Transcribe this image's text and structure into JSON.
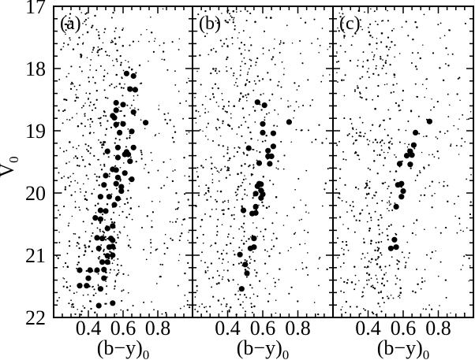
{
  "figure": {
    "background": "#ffffff",
    "ink_color": "#000000"
  },
  "chart_data": {
    "type": "scatter",
    "title": "",
    "xlabel": "(b−y)",
    "xlabel_subscript": "0",
    "ylabel": "V",
    "ylabel_subscript": "0",
    "xlim": [
      0.2,
      1.0
    ],
    "ylim": [
      22,
      17
    ],
    "y_axis_inverted": true,
    "x_major_ticks": [
      0.4,
      0.6,
      0.8
    ],
    "x_tick_labels": [
      "0.4",
      "0.6",
      "0.8"
    ],
    "x_minor_step": 0.05,
    "y_major_ticks": [
      17,
      18,
      19,
      20,
      21,
      22
    ],
    "y_tick_labels": [
      "17",
      "18",
      "19",
      "20",
      "21",
      "22"
    ],
    "y_minor_step": 0.2,
    "grid": false,
    "legend": "none",
    "series_description": {
      "member_stars": "large filled circles: highlighted member stars, coordinates [(b-y)0, V0] read from figure",
      "field_stars": "small dots: background field stars forming a dense vertical band near (b-y)0 ~ 0.3-0.6 with sparser scatter elsewhere; reproduced as seeded random scatter"
    },
    "panels": [
      {
        "label": "(a)",
        "members": [
          [
            0.62,
            18.08
          ],
          [
            0.66,
            18.12
          ],
          [
            0.64,
            18.33
          ],
          [
            0.67,
            18.34
          ],
          [
            0.56,
            18.55
          ],
          [
            0.6,
            18.58
          ],
          [
            0.56,
            18.67
          ],
          [
            0.66,
            18.7
          ],
          [
            0.54,
            18.76
          ],
          [
            0.55,
            18.79
          ],
          [
            0.73,
            18.87
          ],
          [
            0.56,
            18.9
          ],
          [
            0.6,
            18.89
          ],
          [
            0.58,
            19.03
          ],
          [
            0.65,
            19.01
          ],
          [
            0.57,
            19.27
          ],
          [
            0.66,
            19.27
          ],
          [
            0.61,
            19.38
          ],
          [
            0.63,
            19.38
          ],
          [
            0.51,
            19.33
          ],
          [
            0.62,
            19.34
          ],
          [
            0.57,
            19.43
          ],
          [
            0.64,
            19.49
          ],
          [
            0.54,
            19.62
          ],
          [
            0.56,
            19.63
          ],
          [
            0.61,
            19.68
          ],
          [
            0.5,
            19.72
          ],
          [
            0.57,
            19.75
          ],
          [
            0.65,
            19.78
          ],
          [
            0.49,
            19.87
          ],
          [
            0.56,
            19.85
          ],
          [
            0.59,
            19.9
          ],
          [
            0.59,
            19.97
          ],
          [
            0.47,
            20.06
          ],
          [
            0.52,
            20.06
          ],
          [
            0.57,
            20.09
          ],
          [
            0.55,
            20.19
          ],
          [
            0.47,
            20.28
          ],
          [
            0.5,
            20.29
          ],
          [
            0.44,
            20.4
          ],
          [
            0.47,
            20.42
          ],
          [
            0.54,
            20.53
          ],
          [
            0.51,
            20.57
          ],
          [
            0.54,
            20.76
          ],
          [
            0.45,
            20.72
          ],
          [
            0.48,
            20.73
          ],
          [
            0.53,
            20.73
          ],
          [
            0.46,
            20.89
          ],
          [
            0.52,
            20.87
          ],
          [
            0.54,
            20.86
          ],
          [
            0.51,
            21.01
          ],
          [
            0.54,
            21.0
          ],
          [
            0.48,
            21.11
          ],
          [
            0.51,
            21.11
          ],
          [
            0.35,
            21.24
          ],
          [
            0.41,
            21.24
          ],
          [
            0.45,
            21.24
          ],
          [
            0.49,
            21.23
          ],
          [
            0.4,
            21.37
          ],
          [
            0.49,
            21.37
          ],
          [
            0.35,
            21.49
          ],
          [
            0.39,
            21.49
          ],
          [
            0.47,
            21.54
          ],
          [
            0.54,
            21.77
          ],
          [
            0.46,
            21.81
          ]
        ],
        "field": {
          "seed": 101,
          "n_band": 330,
          "n_field": 330,
          "band_center": 0.44,
          "band_sigma": 0.12
        }
      },
      {
        "label": "(b)",
        "members": [
          [
            0.57,
            18.54
          ],
          [
            0.61,
            18.59
          ],
          [
            0.75,
            18.86
          ],
          [
            0.6,
            18.89
          ],
          [
            0.6,
            19.03
          ],
          [
            0.66,
            19.04
          ],
          [
            0.66,
            19.25
          ],
          [
            0.52,
            19.28
          ],
          [
            0.63,
            19.32
          ],
          [
            0.63,
            19.41
          ],
          [
            0.65,
            19.41
          ],
          [
            0.58,
            19.52
          ],
          [
            0.64,
            19.53
          ],
          [
            0.58,
            19.85
          ],
          [
            0.59,
            19.86
          ],
          [
            0.57,
            19.89
          ],
          [
            0.59,
            19.96
          ],
          [
            0.56,
            20.01
          ],
          [
            0.6,
            20.02
          ],
          [
            0.59,
            20.08
          ],
          [
            0.56,
            20.22
          ],
          [
            0.49,
            20.28
          ],
          [
            0.54,
            20.33
          ],
          [
            0.56,
            20.32
          ],
          [
            0.55,
            20.73
          ],
          [
            0.53,
            20.89
          ],
          [
            0.55,
            20.87
          ],
          [
            0.47,
            20.99
          ],
          [
            0.5,
            21.15
          ],
          [
            0.51,
            21.29
          ],
          [
            0.48,
            21.54
          ]
        ],
        "field": {
          "seed": 202,
          "n_band": 300,
          "n_field": 320,
          "band_center": 0.45,
          "band_sigma": 0.12
        }
      },
      {
        "label": "(c)",
        "members": [
          [
            0.75,
            18.85
          ],
          [
            0.67,
            19.03
          ],
          [
            0.66,
            19.23
          ],
          [
            0.64,
            19.33
          ],
          [
            0.62,
            19.4
          ],
          [
            0.65,
            19.39
          ],
          [
            0.58,
            19.53
          ],
          [
            0.64,
            19.54
          ],
          [
            0.59,
            19.85
          ],
          [
            0.57,
            19.87
          ],
          [
            0.6,
            19.97
          ],
          [
            0.59,
            20.06
          ],
          [
            0.56,
            20.22
          ],
          [
            0.55,
            20.75
          ],
          [
            0.53,
            20.89
          ],
          [
            0.56,
            20.87
          ]
        ],
        "field": {
          "seed": 303,
          "n_band": 290,
          "n_field": 310,
          "band_center": 0.45,
          "band_sigma": 0.12
        }
      }
    ]
  }
}
